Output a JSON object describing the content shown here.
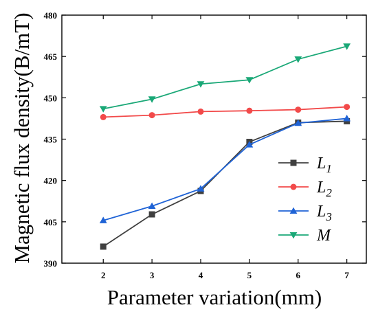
{
  "chart_data": {
    "type": "line",
    "xlabel": "Parameter variation(mm)",
    "ylabel": "Magnetic flux density(B/mT)",
    "x": [
      2,
      3,
      4,
      5,
      6,
      7
    ],
    "xlim": [
      1.15,
      7.4
    ],
    "ylim": [
      390,
      480
    ],
    "xticks": [
      "2",
      "3",
      "4",
      "5",
      "6",
      "7"
    ],
    "yticks": [
      "390",
      "405",
      "420",
      "435",
      "450",
      "465",
      "480"
    ],
    "grid": false,
    "legend_position": "center-right",
    "series": [
      {
        "name": "L1",
        "name_main": "L",
        "name_sub": "1",
        "marker": "square",
        "color": "#404040",
        "values": [
          396.0,
          407.7,
          416.2,
          434.0,
          441.0,
          441.5
        ]
      },
      {
        "name": "L2",
        "name_main": "L",
        "name_sub": "2",
        "marker": "circle",
        "color": "#f24a4a",
        "values": [
          443.0,
          443.7,
          445.0,
          445.3,
          445.7,
          446.7
        ]
      },
      {
        "name": "L3",
        "name_main": "L",
        "name_sub": "3",
        "marker": "triangle-up",
        "color": "#1f63d6",
        "values": [
          405.5,
          410.7,
          417.0,
          433.0,
          440.8,
          442.5
        ]
      },
      {
        "name": "M",
        "name_main": "M",
        "name_sub": "",
        "marker": "triangle-down",
        "color": "#1aa877",
        "values": [
          446.0,
          449.5,
          455.0,
          456.5,
          464.0,
          468.7
        ]
      }
    ]
  }
}
